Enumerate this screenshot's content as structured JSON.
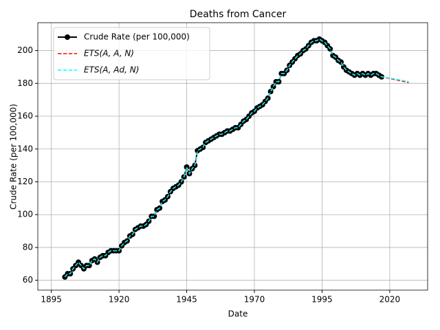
{
  "chart_data": {
    "type": "line",
    "title": "Deaths from Cancer",
    "x_label": "Date",
    "y_label": "Crude Rate (per 100,000)",
    "x": [
      1900,
      1901,
      1902,
      1903,
      1904,
      1905,
      1906,
      1907,
      1908,
      1909,
      1910,
      1911,
      1912,
      1913,
      1914,
      1915,
      1916,
      1917,
      1918,
      1919,
      1920,
      1921,
      1922,
      1923,
      1924,
      1925,
      1926,
      1927,
      1928,
      1929,
      1930,
      1931,
      1932,
      1933,
      1934,
      1935,
      1936,
      1937,
      1938,
      1939,
      1940,
      1941,
      1942,
      1943,
      1944,
      1945,
      1946,
      1947,
      1948,
      1949,
      1950,
      1951,
      1952,
      1953,
      1954,
      1955,
      1956,
      1957,
      1958,
      1959,
      1960,
      1961,
      1962,
      1963,
      1964,
      1965,
      1966,
      1967,
      1968,
      1969,
      1970,
      1971,
      1972,
      1973,
      1974,
      1975,
      1976,
      1977,
      1978,
      1979,
      1980,
      1981,
      1982,
      1983,
      1984,
      1985,
      1986,
      1987,
      1988,
      1989,
      1990,
      1991,
      1992,
      1993,
      1994,
      1995,
      1996,
      1997,
      1998,
      1999,
      2000,
      2001,
      2002,
      2003,
      2004,
      2005,
      2006,
      2007,
      2008,
      2009,
      2010,
      2011,
      2012,
      2013,
      2014,
      2015,
      2016,
      2017,
      2018,
      2019,
      2020,
      2021,
      2022,
      2023,
      2024,
      2025,
      2026,
      2027
    ],
    "series": [
      {
        "name": "Crude Rate (per 100,000)",
        "color": "#000000",
        "dash": false,
        "markers": true,
        "values": [
          62,
          64,
          64,
          67,
          69,
          71,
          69,
          67,
          69,
          69,
          72,
          73,
          71,
          74,
          75,
          75,
          77,
          78,
          78,
          78,
          78,
          81,
          83,
          84,
          87,
          88,
          91,
          92,
          93,
          93,
          94,
          96,
          99,
          99,
          103,
          104,
          108,
          109,
          111,
          114,
          116,
          117,
          118,
          120,
          123,
          129,
          125,
          128,
          130,
          139,
          140,
          141,
          144,
          145,
          146,
          147,
          148,
          149,
          149,
          150,
          151,
          151,
          152,
          153,
          153,
          155,
          157,
          158,
          160,
          162,
          163,
          165,
          166,
          167,
          169,
          171,
          175,
          178,
          181,
          181,
          186,
          186,
          188,
          191,
          193,
          195,
          197,
          198,
          200,
          201,
          203,
          205,
          206,
          206,
          207,
          206,
          205,
          203,
          201,
          197,
          196,
          194,
          193,
          190,
          188,
          187,
          186,
          185,
          186,
          185,
          186,
          185,
          186,
          185,
          186,
          186,
          185,
          184,
          null,
          null,
          null,
          null,
          null,
          null,
          null,
          null,
          null,
          null
        ]
      },
      {
        "name": "ETS(A, A, N)",
        "color": "#ff0000",
        "dash": true,
        "markers": false,
        "values": [
          62,
          64,
          64,
          67,
          69,
          71,
          69,
          67,
          69,
          69,
          72,
          73,
          71,
          74,
          75,
          75,
          77,
          78,
          78,
          78,
          78,
          81,
          83,
          84,
          87,
          88,
          91,
          92,
          93,
          93,
          94,
          96,
          99,
          99,
          103,
          104,
          108,
          109,
          111,
          114,
          116,
          117,
          118,
          120,
          123,
          129,
          125,
          128,
          130,
          139,
          140,
          141,
          144,
          145,
          146,
          147,
          148,
          149,
          149,
          150,
          151,
          151,
          152,
          153,
          153,
          155,
          157,
          158,
          160,
          162,
          163,
          165,
          166,
          167,
          169,
          171,
          175,
          178,
          181,
          181,
          186,
          186,
          188,
          191,
          193,
          195,
          197,
          198,
          200,
          201,
          203,
          205,
          206,
          206,
          207,
          206,
          205,
          203,
          201,
          197,
          196,
          194,
          193,
          190,
          188,
          187,
          186,
          185,
          186,
          185,
          186,
          185,
          186,
          185,
          186,
          186,
          185,
          184,
          183.7,
          183.3,
          183.0,
          182.6,
          182.3,
          181.9,
          181.6,
          181.2,
          180.9,
          180.5
        ]
      },
      {
        "name": "ETS(A, Ad, N)",
        "color": "#00ffff",
        "dash": true,
        "markers": false,
        "values": [
          62,
          64,
          64,
          67,
          69,
          71,
          69,
          67,
          69,
          69,
          72,
          73,
          71,
          74,
          75,
          75,
          77,
          78,
          78,
          78,
          78,
          81,
          83,
          84,
          87,
          88,
          91,
          92,
          93,
          93,
          94,
          96,
          99,
          99,
          103,
          104,
          108,
          109,
          111,
          114,
          116,
          117,
          118,
          120,
          123,
          129,
          125,
          128,
          130,
          139,
          140,
          141,
          144,
          145,
          146,
          147,
          148,
          149,
          149,
          150,
          151,
          151,
          152,
          153,
          153,
          155,
          157,
          158,
          160,
          162,
          163,
          165,
          166,
          167,
          169,
          171,
          175,
          178,
          181,
          181,
          186,
          186,
          188,
          191,
          193,
          195,
          197,
          198,
          200,
          201,
          203,
          205,
          206,
          206,
          207,
          206,
          205,
          203,
          201,
          197,
          196,
          194,
          193,
          190,
          188,
          187,
          186,
          185,
          186,
          185,
          186,
          185,
          186,
          185,
          186,
          186,
          185,
          184,
          183.8,
          183.5,
          183.2,
          182.9,
          182.6,
          182.3,
          182.0,
          181.7,
          181.4,
          181.1
        ]
      }
    ],
    "xlim": [
      1890,
      2034
    ],
    "ylim": [
      54,
      217
    ],
    "xticks": [
      1895,
      1920,
      1945,
      1970,
      1995,
      2020
    ],
    "yticks": [
      60,
      80,
      100,
      120,
      140,
      160,
      180,
      200
    ],
    "grid": true,
    "legend": "upper left"
  }
}
